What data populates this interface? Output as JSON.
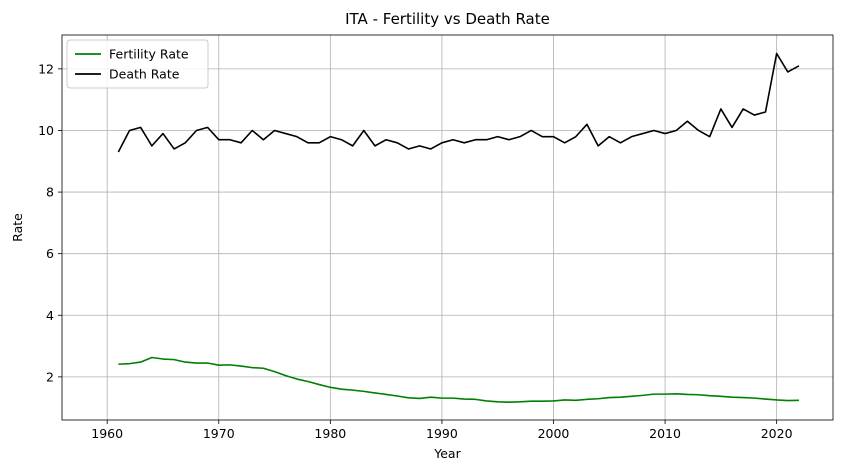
{
  "chart_data": {
    "type": "line",
    "title": "ITA - Fertility vs Death Rate",
    "xlabel": "Year",
    "ylabel": "Rate",
    "xlim": [
      1955.95,
      2025.05
    ],
    "ylim": [
      0.6,
      13.1
    ],
    "xticks": [
      1960,
      1970,
      1980,
      1990,
      2000,
      2010,
      2020
    ],
    "yticks": [
      2,
      4,
      6,
      8,
      10,
      12
    ],
    "grid": true,
    "legend": "top-left",
    "x": [
      1961,
      1962,
      1963,
      1964,
      1965,
      1966,
      1967,
      1968,
      1969,
      1970,
      1971,
      1972,
      1973,
      1974,
      1975,
      1976,
      1977,
      1978,
      1979,
      1980,
      1981,
      1982,
      1983,
      1984,
      1985,
      1986,
      1987,
      1988,
      1989,
      1990,
      1991,
      1992,
      1993,
      1994,
      1995,
      1996,
      1997,
      1998,
      1999,
      2000,
      2001,
      2002,
      2003,
      2004,
      2005,
      2006,
      2007,
      2008,
      2009,
      2010,
      2011,
      2012,
      2013,
      2014,
      2015,
      2016,
      2017,
      2018,
      2019,
      2020,
      2021,
      2022
    ],
    "series": [
      {
        "name": "Fertility Rate",
        "color": "#008000",
        "values": [
          2.41,
          2.43,
          2.48,
          2.63,
          2.58,
          2.56,
          2.48,
          2.45,
          2.45,
          2.38,
          2.39,
          2.35,
          2.3,
          2.28,
          2.17,
          2.04,
          1.93,
          1.85,
          1.75,
          1.66,
          1.6,
          1.57,
          1.53,
          1.48,
          1.43,
          1.38,
          1.32,
          1.3,
          1.34,
          1.31,
          1.31,
          1.28,
          1.27,
          1.22,
          1.19,
          1.18,
          1.19,
          1.21,
          1.21,
          1.22,
          1.25,
          1.24,
          1.27,
          1.29,
          1.33,
          1.34,
          1.37,
          1.4,
          1.44,
          1.44,
          1.45,
          1.43,
          1.42,
          1.39,
          1.37,
          1.34,
          1.33,
          1.31,
          1.28,
          1.25,
          1.23,
          1.24
        ]
      },
      {
        "name": "Death Rate",
        "color": "#000000",
        "values": [
          9.3,
          10.0,
          10.1,
          9.5,
          9.9,
          9.4,
          9.6,
          10.0,
          10.1,
          9.7,
          9.7,
          9.6,
          10.0,
          9.7,
          10.0,
          9.9,
          9.8,
          9.6,
          9.6,
          9.8,
          9.7,
          9.5,
          10.0,
          9.5,
          9.7,
          9.6,
          9.4,
          9.5,
          9.4,
          9.6,
          9.7,
          9.6,
          9.7,
          9.7,
          9.8,
          9.7,
          9.8,
          10.0,
          9.8,
          9.8,
          9.6,
          9.8,
          10.2,
          9.5,
          9.8,
          9.6,
          9.8,
          9.9,
          10.0,
          9.9,
          10.0,
          10.3,
          10.0,
          9.8,
          10.7,
          10.1,
          10.7,
          10.5,
          10.6,
          12.5,
          11.9,
          12.1
        ]
      }
    ]
  }
}
